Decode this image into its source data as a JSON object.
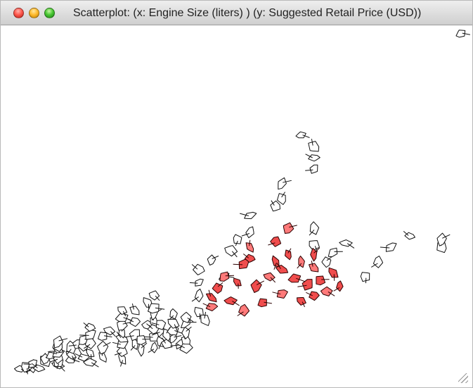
{
  "window": {
    "title": "Scatterplot:  (x: Engine Size (liters) ) (y: Suggested Retail Price (USD))",
    "buttons": {
      "close": "close-window",
      "minimize": "minimize-window",
      "zoom": "zoom-window"
    },
    "resize_icon": "resize-grip-icon"
  },
  "colors": {
    "background": "#ffffff",
    "outline": "#111111",
    "highlight_fill": "#f04d4d",
    "highlight_fill_alt": "#ff7a7a",
    "unselected_fill": "#ffffff"
  },
  "chart_data": {
    "type": "scatter",
    "title": "Scatterplot:  (x: Engine Size (liters) ) (y: Suggested Retail Price (USD))",
    "xlabel": "Engine Size (liters)",
    "ylabel": "Suggested Retail Price (USD)",
    "grid": false,
    "legend": "none",
    "xlim": [
      1.3,
      8.3
    ],
    "ylim": [
      10280,
      192465
    ],
    "series": [
      {
        "name": "",
        "points": [
          {
            "x": 1.4,
            "y": 12500
          },
          {
            "x": 1.5,
            "y": 13500
          },
          {
            "x": 1.6,
            "y": 14000
          },
          {
            "x": 1.6,
            "y": 15500
          },
          {
            "x": 1.7,
            "y": 13000
          },
          {
            "x": 1.8,
            "y": 17000
          },
          {
            "x": 1.8,
            "y": 18000
          },
          {
            "x": 1.9,
            "y": 20000
          },
          {
            "x": 2.0,
            "y": 14500
          },
          {
            "x": 2.0,
            "y": 16000
          },
          {
            "x": 2.0,
            "y": 18500
          },
          {
            "x": 2.0,
            "y": 21000
          },
          {
            "x": 2.0,
            "y": 23000
          },
          {
            "x": 2.0,
            "y": 25000
          },
          {
            "x": 2.0,
            "y": 27000
          },
          {
            "x": 2.2,
            "y": 17500
          },
          {
            "x": 2.2,
            "y": 20000
          },
          {
            "x": 2.2,
            "y": 24000
          },
          {
            "x": 2.3,
            "y": 26000
          },
          {
            "x": 2.4,
            "y": 19000
          },
          {
            "x": 2.4,
            "y": 22000
          },
          {
            "x": 2.4,
            "y": 25000
          },
          {
            "x": 2.4,
            "y": 28000
          },
          {
            "x": 2.5,
            "y": 16000
          },
          {
            "x": 2.5,
            "y": 21000
          },
          {
            "x": 2.5,
            "y": 26500
          },
          {
            "x": 2.5,
            "y": 31000
          },
          {
            "x": 2.5,
            "y": 35000
          },
          {
            "x": 2.7,
            "y": 19000
          },
          {
            "x": 2.7,
            "y": 24000
          },
          {
            "x": 2.7,
            "y": 30000
          },
          {
            "x": 2.8,
            "y": 33000
          },
          {
            "x": 3.0,
            "y": 18000
          },
          {
            "x": 3.0,
            "y": 22000
          },
          {
            "x": 3.0,
            "y": 26000
          },
          {
            "x": 3.0,
            "y": 29000
          },
          {
            "x": 3.0,
            "y": 32000
          },
          {
            "x": 3.0,
            "y": 36000
          },
          {
            "x": 3.0,
            "y": 40000
          },
          {
            "x": 3.0,
            "y": 44000
          },
          {
            "x": 3.2,
            "y": 26000
          },
          {
            "x": 3.2,
            "y": 31000
          },
          {
            "x": 3.2,
            "y": 38000
          },
          {
            "x": 3.2,
            "y": 44000
          },
          {
            "x": 3.3,
            "y": 23000
          },
          {
            "x": 3.3,
            "y": 28000
          },
          {
            "x": 3.4,
            "y": 36000
          },
          {
            "x": 3.4,
            "y": 48000
          },
          {
            "x": 3.5,
            "y": 24000
          },
          {
            "x": 3.5,
            "y": 30000
          },
          {
            "x": 3.5,
            "y": 34000
          },
          {
            "x": 3.5,
            "y": 38000
          },
          {
            "x": 3.5,
            "y": 42000
          },
          {
            "x": 3.5,
            "y": 45000
          },
          {
            "x": 3.5,
            "y": 52000
          },
          {
            "x": 3.6,
            "y": 27000
          },
          {
            "x": 3.6,
            "y": 33000
          },
          {
            "x": 3.6,
            "y": 36500
          },
          {
            "x": 3.7,
            "y": 26000
          },
          {
            "x": 3.7,
            "y": 31000
          },
          {
            "x": 3.8,
            "y": 29000
          },
          {
            "x": 3.8,
            "y": 33000
          },
          {
            "x": 3.8,
            "y": 37000
          },
          {
            "x": 3.8,
            "y": 42000
          },
          {
            "x": 3.9,
            "y": 26000
          },
          {
            "x": 4.0,
            "y": 24000
          },
          {
            "x": 4.0,
            "y": 28000
          },
          {
            "x": 4.0,
            "y": 32000
          },
          {
            "x": 4.0,
            "y": 37000
          },
          {
            "x": 4.0,
            "y": 40000
          },
          {
            "x": 4.2,
            "y": 43000
          },
          {
            "x": 4.2,
            "y": 52000
          },
          {
            "x": 4.2,
            "y": 59000
          },
          {
            "x": 4.2,
            "y": 66000
          },
          {
            "x": 4.3,
            "y": 39000
          },
          {
            "x": 4.4,
            "y": 71000
          },
          {
            "x": 4.6,
            "y": 62000
          },
          {
            "x": 4.7,
            "y": 76000
          },
          {
            "x": 4.8,
            "y": 82000
          },
          {
            "x": 5.0,
            "y": 86000
          },
          {
            "x": 5.0,
            "y": 95000
          },
          {
            "x": 5.4,
            "y": 100000
          },
          {
            "x": 5.5,
            "y": 104000
          },
          {
            "x": 5.5,
            "y": 112000
          },
          {
            "x": 5.8,
            "y": 138000
          },
          {
            "x": 6.0,
            "y": 79000
          },
          {
            "x": 6.0,
            "y": 88000
          },
          {
            "x": 6.0,
            "y": 120000
          },
          {
            "x": 6.0,
            "y": 126000
          },
          {
            "x": 6.0,
            "y": 132000
          },
          {
            "x": 6.2,
            "y": 70000
          },
          {
            "x": 6.3,
            "y": 75000
          },
          {
            "x": 6.5,
            "y": 80000
          },
          {
            "x": 6.8,
            "y": 62000
          },
          {
            "x": 7.0,
            "y": 70000
          },
          {
            "x": 7.2,
            "y": 78000
          },
          {
            "x": 7.5,
            "y": 84000
          },
          {
            "x": 8.0,
            "y": 78000
          },
          {
            "x": 8.0,
            "y": 82000
          },
          {
            "x": 8.3,
            "y": 192465
          }
        ]
      },
      {
        "name": "",
        "points": [
          {
            "x": 4.4,
            "y": 46000
          },
          {
            "x": 4.4,
            "y": 51000
          },
          {
            "x": 4.5,
            "y": 56000
          },
          {
            "x": 4.6,
            "y": 62000
          },
          {
            "x": 4.7,
            "y": 49000
          },
          {
            "x": 4.8,
            "y": 59000
          },
          {
            "x": 4.9,
            "y": 44000
          },
          {
            "x": 4.9,
            "y": 69000
          },
          {
            "x": 5.0,
            "y": 72000
          },
          {
            "x": 5.0,
            "y": 78000
          },
          {
            "x": 5.1,
            "y": 57000
          },
          {
            "x": 5.2,
            "y": 48000
          },
          {
            "x": 5.3,
            "y": 62000
          },
          {
            "x": 5.4,
            "y": 70000
          },
          {
            "x": 5.4,
            "y": 81000
          },
          {
            "x": 5.5,
            "y": 53000
          },
          {
            "x": 5.5,
            "y": 66000
          },
          {
            "x": 5.6,
            "y": 74000
          },
          {
            "x": 5.6,
            "y": 88000
          },
          {
            "x": 5.7,
            "y": 61000
          },
          {
            "x": 5.8,
            "y": 49000
          },
          {
            "x": 5.8,
            "y": 70000
          },
          {
            "x": 5.9,
            "y": 58000
          },
          {
            "x": 6.0,
            "y": 52000
          },
          {
            "x": 6.0,
            "y": 67000
          },
          {
            "x": 6.0,
            "y": 74000
          },
          {
            "x": 6.1,
            "y": 60000
          },
          {
            "x": 6.2,
            "y": 54000
          },
          {
            "x": 6.3,
            "y": 64000
          },
          {
            "x": 6.4,
            "y": 57000
          }
        ]
      }
    ]
  }
}
